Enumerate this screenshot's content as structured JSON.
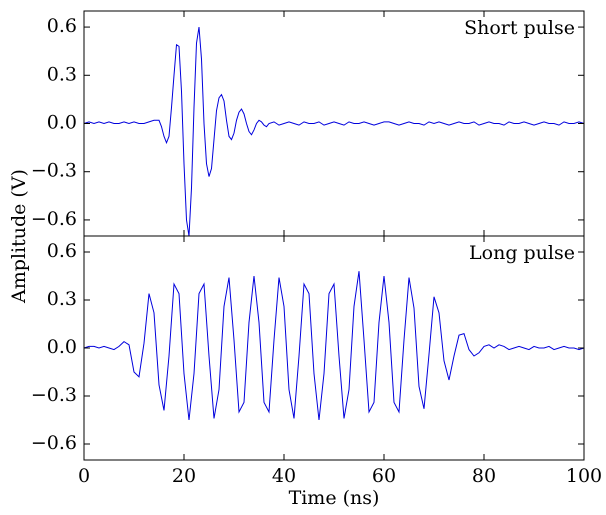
{
  "chart_data": [
    {
      "type": "line",
      "annotation": "Short pulse",
      "ylabel": "Amplitude (V)",
      "color": "#0000dd",
      "x": [
        0,
        1,
        2,
        3,
        4,
        5,
        6,
        7,
        8,
        9,
        10,
        11,
        12,
        13,
        14,
        15,
        15.5,
        16,
        16.5,
        17,
        17.5,
        18,
        18.5,
        19,
        19.5,
        20,
        20.5,
        21,
        21.5,
        22,
        22.5,
        23,
        23.5,
        24,
        24.5,
        25,
        25.5,
        26,
        26.5,
        27,
        27.5,
        28,
        28.5,
        29,
        29.5,
        30,
        30.5,
        31,
        31.5,
        32,
        32.5,
        33,
        33.5,
        34,
        34.5,
        35,
        35.5,
        36,
        36.5,
        37,
        38,
        39,
        40,
        41,
        42,
        43,
        44,
        45,
        46,
        47,
        48,
        49,
        50,
        51,
        52,
        53,
        54,
        55,
        56,
        57,
        58,
        59,
        60,
        61,
        62,
        63,
        64,
        65,
        66,
        67,
        68,
        69,
        70,
        71,
        72,
        73,
        74,
        75,
        76,
        77,
        78,
        79,
        80,
        81,
        82,
        83,
        84,
        85,
        86,
        87,
        88,
        89,
        90,
        91,
        92,
        93,
        94,
        95,
        96,
        97,
        98,
        99,
        100
      ],
      "values": [
        0,
        0.01,
        0,
        0.01,
        0,
        0.01,
        0,
        0,
        0.01,
        0,
        0.01,
        0,
        0,
        0.01,
        0.02,
        0.02,
        -0.02,
        -0.08,
        -0.12,
        -0.08,
        0.1,
        0.3,
        0.49,
        0.48,
        0.2,
        -0.25,
        -0.6,
        -0.7,
        -0.4,
        0.1,
        0.5,
        0.6,
        0.4,
        0,
        -0.25,
        -0.33,
        -0.28,
        -0.1,
        0.08,
        0.16,
        0.18,
        0.14,
        0.02,
        -0.08,
        -0.1,
        -0.06,
        0.02,
        0.07,
        0.09,
        0.06,
        0,
        -0.05,
        -0.07,
        -0.04,
        0,
        0.02,
        0.01,
        -0.01,
        -0.02,
        0,
        0.01,
        -0.01,
        0,
        0.01,
        0,
        -0.01,
        0.01,
        0,
        0,
        0.01,
        -0.01,
        0,
        0.01,
        0,
        -0.01,
        0.01,
        0,
        0,
        0.01,
        0,
        -0.01,
        0,
        0.01,
        0.01,
        0,
        -0.01,
        0,
        0.01,
        0,
        0,
        -0.01,
        0.01,
        0,
        0.01,
        0,
        -0.01,
        0,
        0.01,
        0,
        0,
        0.01,
        -0.01,
        0,
        0.01,
        0,
        0,
        -0.01,
        0.01,
        0,
        0,
        0.01,
        0,
        -0.01,
        0,
        0.01,
        0,
        0,
        -0.01,
        0.01,
        0,
        0,
        0.01,
        0
      ],
      "ylim": [
        -0.7,
        0.7
      ],
      "yticks": [
        {
          "value": -0.6,
          "label": "−0.6"
        },
        {
          "value": -0.3,
          "label": "−0.3"
        },
        {
          "value": 0,
          "label": "0.0"
        },
        0.3,
        0.6
      ],
      "xlim": [
        0,
        100
      ],
      "xticks": [
        0,
        20,
        40,
        60,
        80,
        100
      ]
    },
    {
      "type": "line",
      "annotation": "Long pulse",
      "xlabel": "Time (ns)",
      "color": "#0000dd",
      "x": [
        0,
        1,
        2,
        3,
        4,
        5,
        6,
        7,
        8,
        9,
        10,
        11,
        12,
        13,
        14,
        15,
        16,
        17,
        18,
        19,
        20,
        21,
        22,
        23,
        24,
        25,
        26,
        27,
        28,
        29,
        30,
        31,
        32,
        33,
        34,
        35,
        36,
        37,
        38,
        39,
        40,
        41,
        42,
        43,
        44,
        45,
        46,
        47,
        48,
        49,
        50,
        51,
        52,
        53,
        54,
        55,
        56,
        57,
        58,
        59,
        60,
        61,
        62,
        63,
        64,
        65,
        66,
        67,
        68,
        69,
        70,
        71,
        72,
        73,
        74,
        75,
        76,
        77,
        78,
        79,
        80,
        81,
        82,
        83,
        84,
        85,
        86,
        87,
        88,
        89,
        90,
        91,
        92,
        93,
        94,
        95,
        96,
        97,
        98,
        99,
        100
      ],
      "values": [
        0,
        0.01,
        0.01,
        0,
        0.01,
        0,
        -0.01,
        0.01,
        0.04,
        0.02,
        -0.15,
        -0.18,
        0.03,
        0.34,
        0.22,
        -0.23,
        -0.39,
        -0.05,
        0.4,
        0.34,
        -0.16,
        -0.45,
        -0.16,
        0.34,
        0.4,
        -0.05,
        -0.44,
        -0.26,
        0.26,
        0.44,
        0.05,
        -0.4,
        -0.34,
        0.16,
        0.45,
        0.16,
        -0.34,
        -0.4,
        0.05,
        0.44,
        0.26,
        -0.26,
        -0.44,
        -0.05,
        0.4,
        0.34,
        -0.16,
        -0.45,
        -0.16,
        0.34,
        0.4,
        -0.05,
        -0.44,
        -0.26,
        0.26,
        0.48,
        0.05,
        -0.4,
        -0.34,
        0.16,
        0.45,
        0.16,
        -0.34,
        -0.4,
        0.05,
        0.44,
        0.25,
        -0.24,
        -0.38,
        -0.04,
        0.32,
        0.22,
        -0.08,
        -0.2,
        -0.05,
        0.08,
        0.09,
        -0.01,
        -0.05,
        -0.03,
        0.01,
        0.02,
        0,
        0.02,
        0.01,
        -0.01,
        0,
        0.01,
        0,
        -0.01,
        0.01,
        0,
        0,
        0.01,
        -0.01,
        0,
        0.01,
        0,
        0,
        -0.01,
        0
      ],
      "ylim": [
        -0.7,
        0.7
      ],
      "yticks": [
        {
          "value": -0.6,
          "label": "−0.6"
        },
        {
          "value": -0.3,
          "label": "−0.3"
        },
        {
          "value": 0,
          "label": "0.0"
        },
        0.3,
        0.6
      ],
      "xlim": [
        0,
        100
      ],
      "xticks": [
        0,
        20,
        40,
        60,
        80,
        100
      ]
    }
  ]
}
